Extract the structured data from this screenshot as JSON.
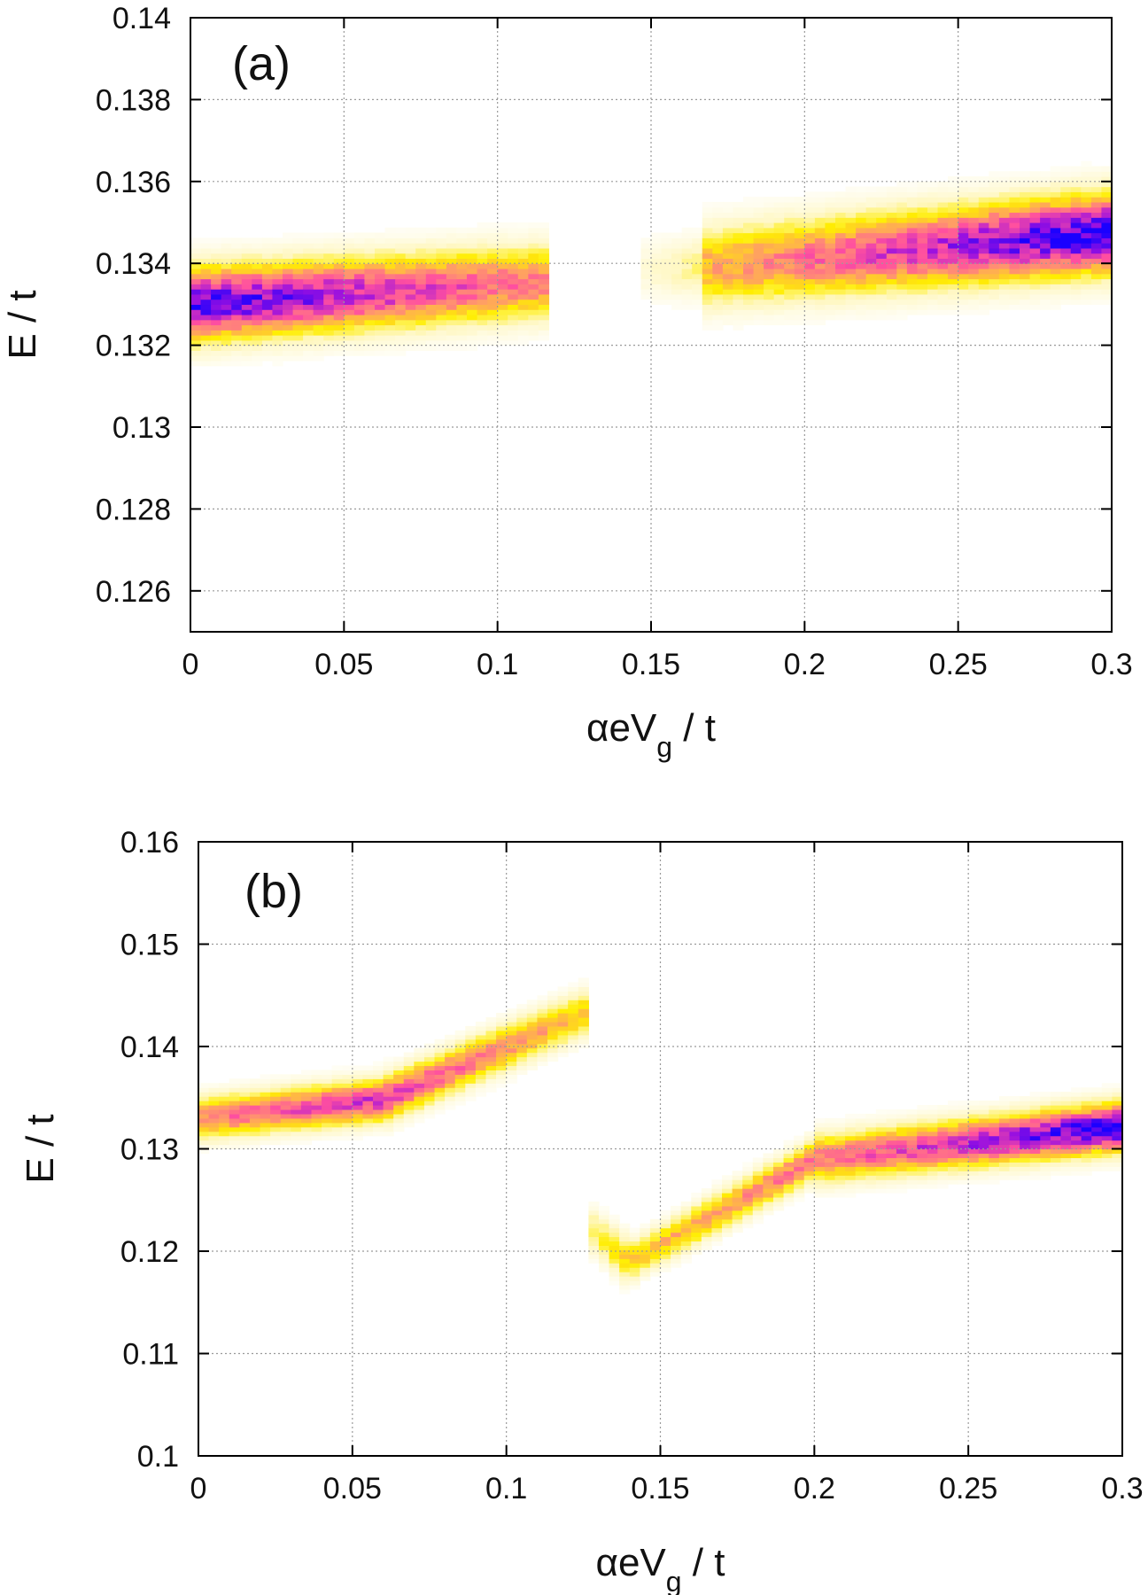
{
  "figure": {
    "colors": {
      "frame": "#000000",
      "grid": "#9a9a9a",
      "colormap": [
        "#ffffff",
        "#fff7c0",
        "#ffee00",
        "#ff9a6a",
        "#ff4fa0",
        "#9a10e0",
        "#1a00ff"
      ]
    }
  },
  "chart_data": [
    {
      "id": "a",
      "type": "heatmap",
      "panel_label": "(a)",
      "xlabel": "αeV",
      "xlabel_sub": "g",
      "xlabel_tail": " / t",
      "ylabel": "E / t",
      "xlim": [
        0,
        0.3
      ],
      "ylim": [
        0.125,
        0.14
      ],
      "grid": true,
      "xticks": [
        0,
        0.05,
        0.1,
        0.15,
        0.2,
        0.25,
        0.3
      ],
      "xtick_labels": [
        "0",
        "0.05",
        "0.1",
        "0.15",
        "0.2",
        "0.25",
        "0.3"
      ],
      "yticks": [
        0.126,
        0.128,
        0.13,
        0.132,
        0.134,
        0.136,
        0.138,
        0.14
      ],
      "ytick_labels": [
        "0.126",
        "0.128",
        "0.13",
        "0.132",
        "0.134",
        "0.136",
        "0.138",
        "0.14"
      ],
      "segments": [
        {
          "x0": 0.0,
          "x1": 0.115,
          "y0": 0.133,
          "y1": 0.13355,
          "peak0": 0.95,
          "peak1": 0.55,
          "halfwidth": 0.0006
        },
        {
          "x0": 0.148,
          "x1": 0.165,
          "y0": 0.13385,
          "y1": 0.1339,
          "peak0": 0.1,
          "peak1": 0.22,
          "halfwidth": 0.0005
        },
        {
          "x0": 0.165,
          "x1": 0.3,
          "y0": 0.1339,
          "y1": 0.13475,
          "peak0": 0.45,
          "peak1": 1.0,
          "halfwidth": 0.00065
        }
      ]
    },
    {
      "id": "b",
      "type": "heatmap",
      "panel_label": "(b)",
      "xlabel": "αeV",
      "xlabel_sub": "g",
      "xlabel_tail": " / t",
      "ylabel": "E / t",
      "xlim": [
        0,
        0.3
      ],
      "ylim": [
        0.1,
        0.16
      ],
      "grid": true,
      "xticks": [
        0,
        0.05,
        0.1,
        0.15,
        0.2,
        0.25,
        0.3
      ],
      "xtick_labels": [
        "0",
        "0.05",
        "0.1",
        "0.15",
        "0.2",
        "0.25",
        "0.3"
      ],
      "yticks": [
        0.1,
        0.11,
        0.12,
        0.13,
        0.14,
        0.15,
        0.16
      ],
      "ytick_labels": [
        "0.1",
        "0.11",
        "0.12",
        "0.13",
        "0.14",
        "0.15",
        "0.16"
      ],
      "segments": [
        {
          "x0": 0.0,
          "x1": 0.06,
          "y0": 0.133,
          "y1": 0.1348,
          "peak0": 0.55,
          "peak1": 0.75,
          "halfwidth": 0.0014
        },
        {
          "x0": 0.06,
          "x1": 0.127,
          "y0": 0.1348,
          "y1": 0.1435,
          "peak0": 0.7,
          "peak1": 0.4,
          "halfwidth": 0.0015
        },
        {
          "x0": 0.128,
          "x1": 0.14,
          "y0": 0.122,
          "y1": 0.119,
          "peak0": 0.25,
          "peak1": 0.4,
          "halfwidth": 0.0015
        },
        {
          "x0": 0.14,
          "x1": 0.2,
          "y0": 0.119,
          "y1": 0.129,
          "peak0": 0.4,
          "peak1": 0.6,
          "halfwidth": 0.0013
        },
        {
          "x0": 0.2,
          "x1": 0.3,
          "y0": 0.129,
          "y1": 0.1322,
          "peak0": 0.55,
          "peak1": 1.0,
          "halfwidth": 0.0016
        }
      ]
    }
  ]
}
